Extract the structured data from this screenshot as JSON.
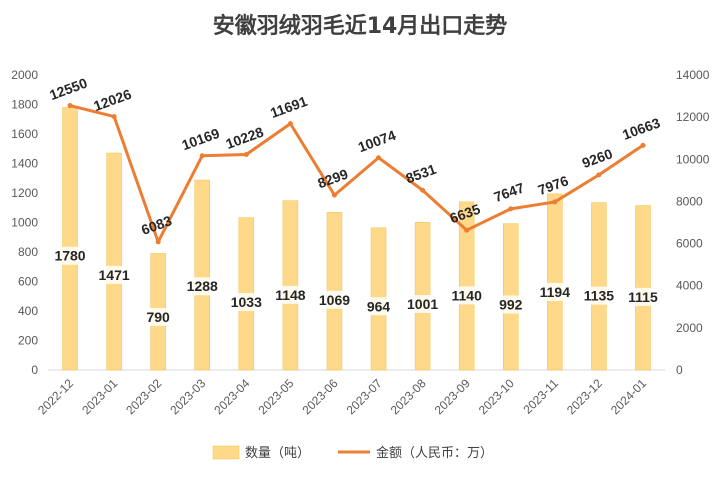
{
  "chart_data": {
    "type": "bar+line",
    "title": "安徽羽绒羽毛近14月出口走势",
    "categories": [
      "2022-12",
      "2023-01",
      "2023-02",
      "2023-03",
      "2023-04",
      "2023-05",
      "2023-06",
      "2023-07",
      "2023-08",
      "2023-09",
      "2023-10",
      "2023-11",
      "2023-12",
      "2024-01"
    ],
    "series": [
      {
        "name": "数量（吨）",
        "type": "bar",
        "axis": "left",
        "color": "#FFD98A",
        "values": [
          1780,
          1471,
          790,
          1288,
          1033,
          1148,
          1069,
          964,
          1001,
          1140,
          992,
          1194,
          1135,
          1115
        ]
      },
      {
        "name": "金额（人民币：万）",
        "type": "line",
        "axis": "right",
        "color": "#ED7D31",
        "values": [
          12550,
          12026,
          6083,
          10169,
          10228,
          11691,
          8299,
          10074,
          8531,
          6635,
          7647,
          7976,
          9260,
          10663
        ]
      }
    ],
    "ylim_left": [
      0,
      2000
    ],
    "yticks_left": [
      0,
      200,
      400,
      600,
      800,
      1000,
      1200,
      1400,
      1600,
      1800,
      2000
    ],
    "ylim_right": [
      0,
      14000
    ],
    "yticks_right": [
      0,
      2000,
      4000,
      6000,
      8000,
      10000,
      12000,
      14000
    ],
    "legend_position": "bottom",
    "grid": false
  }
}
